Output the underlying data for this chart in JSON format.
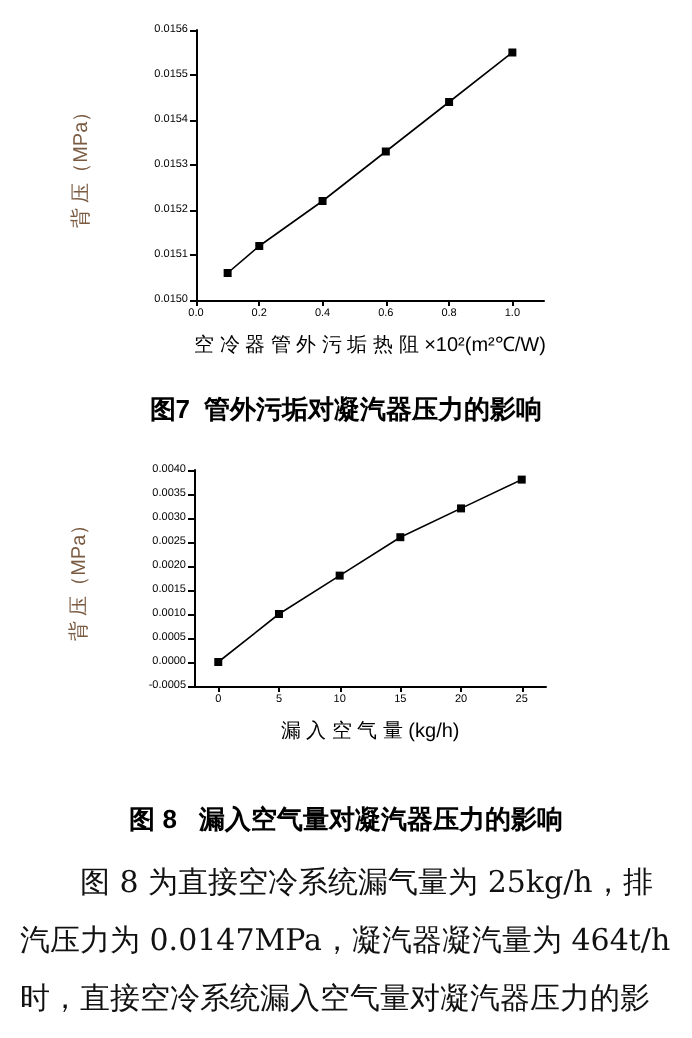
{
  "chart_data": [
    {
      "type": "line",
      "title": "图7  管外污垢对凝汽器压力的影响",
      "xlabel": "空 冷 器 管 外 污 垢 热 阻 ×10²(m²℃/W)",
      "ylabel": "背 压（MPa）",
      "x": [
        0.1,
        0.2,
        0.4,
        0.6,
        0.8,
        1.0
      ],
      "series": [
        {
          "color": "#000000",
          "values": [
            0.01506,
            0.01512,
            0.01522,
            0.01533,
            0.01544,
            0.01555
          ]
        }
      ],
      "xlim": [
        0,
        1.1
      ],
      "xticks": [
        {
          "value": 0,
          "label": "0.0"
        },
        {
          "value": 0.2,
          "label": "0.2"
        },
        {
          "value": 0.4,
          "label": "0.4"
        },
        {
          "value": 0.6,
          "label": "0.6"
        },
        {
          "value": 0.8,
          "label": "0.8"
        },
        {
          "value": 1,
          "label": "1.0"
        }
      ],
      "ylim": [
        0.015,
        0.0156
      ],
      "yticks": [
        {
          "value": 0.015,
          "label": "0.0150"
        },
        {
          "value": 0.0151,
          "label": "0.0151"
        },
        {
          "value": 0.0152,
          "label": "0.0152"
        },
        {
          "value": 0.0153,
          "label": "0.0153"
        },
        {
          "value": 0.0154,
          "label": "0.0154"
        },
        {
          "value": 0.0155,
          "label": "0.0155"
        },
        {
          "value": 0.0156,
          "label": "0.0156"
        }
      ],
      "grid": false,
      "marker": "square",
      "line_style": "solid"
    },
    {
      "type": "line",
      "title": "图 8   漏入空气量对凝汽器压力的影响",
      "xlabel": "漏 入 空 气 量 (kg/h)",
      "ylabel": "背 压（MPa）",
      "x": [
        0,
        5,
        10,
        15,
        20,
        25
      ],
      "series": [
        {
          "color": "#000000",
          "values": [
            0,
            0.001,
            0.0018,
            0.0026,
            0.0032,
            0.0038
          ]
        }
      ],
      "xlim": [
        -2,
        27
      ],
      "xticks": [
        0,
        5,
        10,
        15,
        20,
        25
      ],
      "ylim": [
        -0.0005,
        0.004
      ],
      "yticks": [
        {
          "value": -0.0005,
          "label": "-0.0005"
        },
        {
          "value": 0,
          "label": "0.0000"
        },
        {
          "value": 0.0005,
          "label": "0.0005"
        },
        {
          "value": 0.001,
          "label": "0.0010"
        },
        {
          "value": 0.0015,
          "label": "0.0015"
        },
        {
          "value": 0.002,
          "label": "0.0020"
        },
        {
          "value": 0.0025,
          "label": "0.0025"
        },
        {
          "value": 0.003,
          "label": "0.0030"
        },
        {
          "value": 0.0035,
          "label": "0.0035"
        },
        {
          "value": 0.004,
          "label": "0.0040"
        }
      ],
      "grid": false,
      "marker": "square",
      "line_style": "solid",
      "annotations": [
        "图 8 为直接空冷系统漏气量为 25kg/h，排汽压力为 0.0147MPa，凝汽器凝汽量为 464t/h时，直接空冷系统漏入空气量对凝汽器压力的影"
      ]
    }
  ]
}
